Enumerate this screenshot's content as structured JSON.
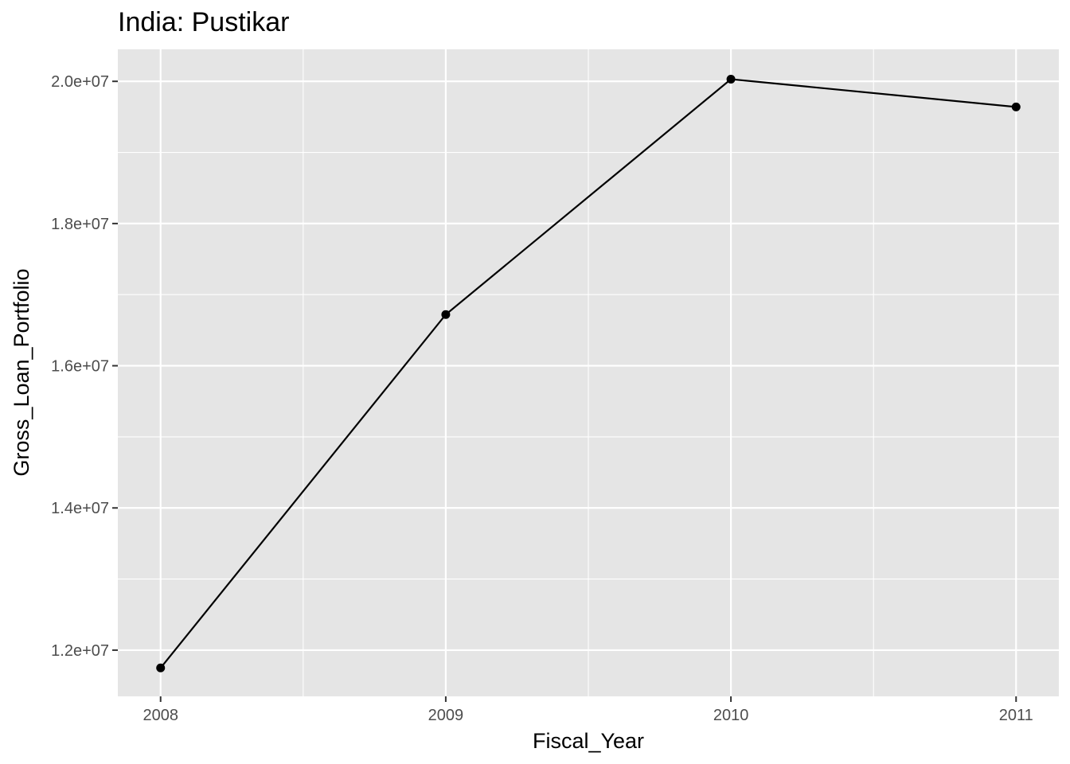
{
  "chart_data": {
    "type": "line",
    "title": "India:  Pustikar",
    "xlabel": "Fiscal_Year",
    "ylabel": "Gross_Loan_Portfolio",
    "x": [
      2008,
      2009,
      2010,
      2011
    ],
    "x_tick_labels": [
      "2008",
      "2009",
      "2010",
      "2011"
    ],
    "y_ticks": [
      12000000,
      14000000,
      16000000,
      18000000,
      20000000
    ],
    "y_tick_labels": [
      "1.2e+07",
      "1.4e+07",
      "1.6e+07",
      "1.8e+07",
      "2.0e+07"
    ],
    "xlim": [
      2007.85,
      2011.15
    ],
    "ylim": [
      11350000,
      20450000
    ],
    "grid": true,
    "legend": "none",
    "series": [
      {
        "values": [
          11750000,
          16720000,
          20030000,
          19640000
        ]
      }
    ],
    "colors": {
      "panel": "#e5e5e5",
      "grid": "#ffffff",
      "line": "#000000",
      "tick_text": "#4d4d4d"
    }
  }
}
